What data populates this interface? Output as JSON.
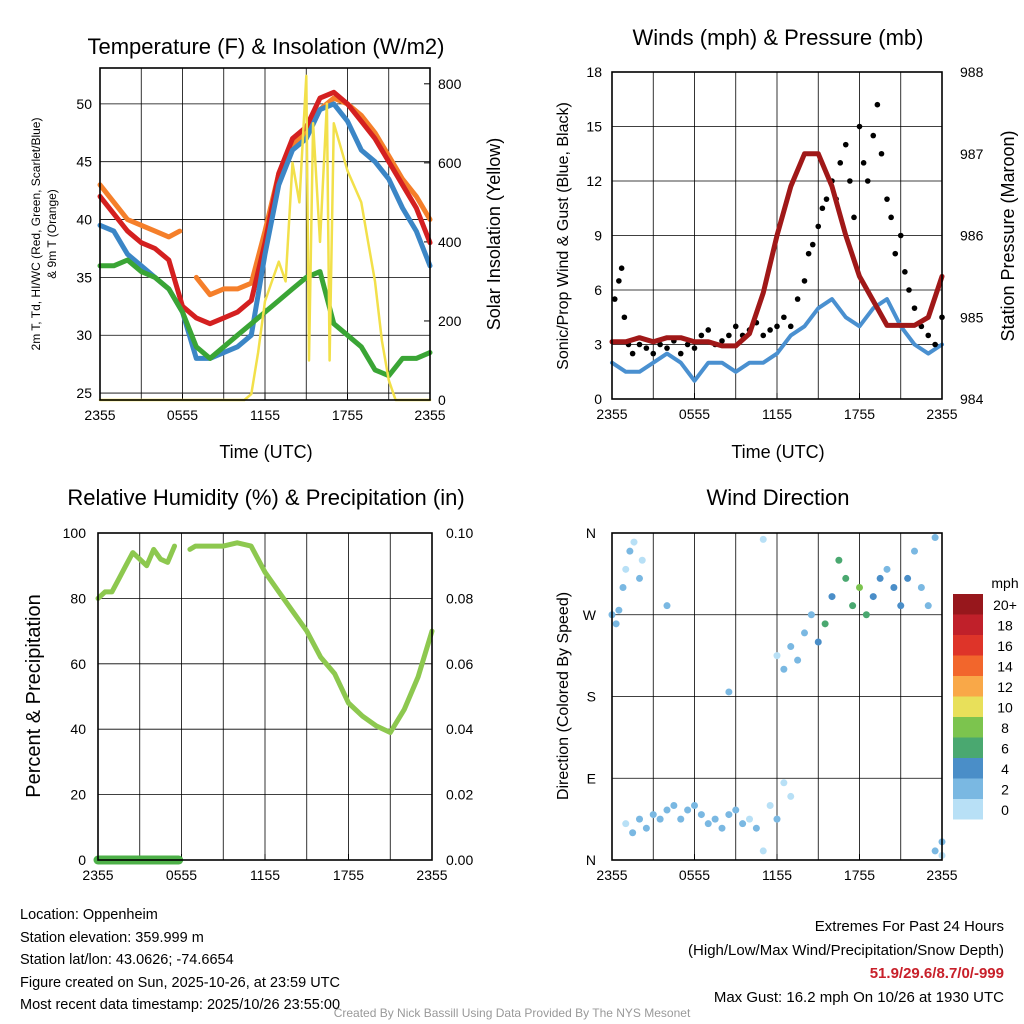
{
  "chart_data": [
    {
      "type": "line",
      "title": "Temperature (F) & Insolation (W/m2)",
      "xlabel": "Time (UTC)",
      "ylabel": "2m T, Td, HI/WC (Red, Green, Scarlet/Blue) & 9m T (Orange)",
      "y2label": "Solar Insolation (Yellow)",
      "xticks": [
        "2355",
        "0555",
        "1155",
        "1755",
        "2355"
      ],
      "yticks": [
        "25",
        "30",
        "35",
        "40",
        "45",
        "50"
      ],
      "y2ticks": [
        "0",
        "200",
        "400",
        "600",
        "800"
      ],
      "ylim": [
        24.4,
        53.1
      ],
      "y2lim": [
        0,
        840
      ],
      "xlim_hours": [
        0,
        24
      ],
      "series": [
        {
          "name": "9m T",
          "color": "#f57f2a",
          "axis": "left",
          "x": [
            0,
            1,
            2,
            3,
            4,
            5,
            5.8,
            6.8,
            7,
            8,
            9,
            10,
            11,
            12,
            13,
            14,
            15,
            16,
            17,
            18,
            19,
            20,
            21,
            22,
            23,
            24
          ],
          "values": [
            43,
            41.5,
            40,
            39.5,
            39,
            38.5,
            39,
            null,
            35,
            33.5,
            34,
            34,
            34.5,
            39,
            44,
            46.5,
            47.5,
            49.5,
            50.5,
            50,
            49,
            47.5,
            45.5,
            43.5,
            42,
            40
          ]
        },
        {
          "name": "2m T",
          "color": "#d42020",
          "axis": "left",
          "x": [
            0,
            1,
            2,
            3,
            4,
            5,
            6,
            7,
            8,
            9,
            10,
            11,
            12,
            13,
            14,
            15,
            16,
            17,
            18,
            19,
            20,
            21,
            22,
            23,
            24
          ],
          "values": [
            42,
            40.5,
            39,
            38,
            37.5,
            36.5,
            32.5,
            31.5,
            31,
            31.5,
            32,
            33,
            38,
            44,
            47,
            48,
            50.5,
            51,
            50,
            48.5,
            47,
            45,
            43,
            41,
            38
          ]
        },
        {
          "name": "HI/WC",
          "color": "#3b86c6",
          "axis": "left",
          "x": [
            0,
            1,
            2,
            3,
            4,
            5,
            6,
            7,
            8,
            9,
            10,
            11,
            12,
            13,
            14,
            15,
            16,
            17,
            18,
            19,
            20,
            21,
            22,
            23,
            24
          ],
          "values": [
            39.5,
            39,
            37,
            36,
            35,
            34,
            32,
            28,
            28,
            28.5,
            29,
            30,
            37,
            43,
            46,
            47,
            49.5,
            50,
            48.5,
            46,
            45,
            43.5,
            41,
            39,
            36
          ]
        },
        {
          "name": "Td",
          "color": "#3aa535",
          "axis": "left",
          "x": [
            0,
            1,
            2,
            3,
            4,
            5,
            6,
            7,
            8,
            9,
            10,
            11,
            12,
            13,
            14,
            15,
            16,
            17,
            18,
            19,
            20,
            21,
            22,
            23,
            24
          ],
          "values": [
            36,
            36,
            36.5,
            35.5,
            35,
            34,
            32,
            29,
            28,
            29,
            30,
            31,
            32,
            33,
            34,
            35,
            35.5,
            31,
            30,
            29,
            27,
            26.5,
            28,
            28,
            28.5
          ]
        },
        {
          "name": "Solar",
          "color": "#f2e04a",
          "axis": "right",
          "x": [
            0,
            10.5,
            11,
            11.5,
            12,
            12.5,
            13,
            13.5,
            14,
            14.5,
            15,
            15.2,
            15.5,
            16,
            16.5,
            16.7,
            17,
            18,
            19,
            19.5,
            20,
            20.5,
            21,
            21.5,
            24
          ],
          "values": [
            0,
            0,
            15,
            120,
            250,
            300,
            350,
            300,
            600,
            500,
            820,
            100,
            700,
            400,
            750,
            100,
            700,
            580,
            500,
            400,
            300,
            150,
            50,
            0,
            0
          ]
        }
      ]
    },
    {
      "type": "line",
      "title": "Winds (mph) & Pressure (mb)",
      "xlabel": "Time (UTC)",
      "ylabel": "Sonic/Prop Wind & Gust (Blue, Black)",
      "y2label": "Station Pressure (Maroon)",
      "xticks": [
        "2355",
        "0555",
        "1155",
        "1755",
        "2355"
      ],
      "yticks": [
        "0",
        "3",
        "6",
        "9",
        "12",
        "15",
        "18"
      ],
      "y2ticks": [
        "984",
        "985",
        "986",
        "987",
        "988"
      ],
      "ylim": [
        0,
        18
      ],
      "y2lim": [
        984,
        988
      ],
      "wind": {
        "color": "#4a90d0",
        "x": [
          0,
          1,
          2,
          3,
          4,
          5,
          6,
          7,
          8,
          9,
          10,
          11,
          12,
          13,
          14,
          15,
          16,
          17,
          18,
          19,
          20,
          21,
          22,
          23,
          24
        ],
        "values": [
          2,
          1.5,
          1.5,
          2,
          2.5,
          2,
          1,
          2,
          2,
          1.5,
          2,
          2,
          2.5,
          3.5,
          4,
          5,
          5.5,
          4.5,
          4,
          5,
          5.5,
          4,
          3,
          2.5,
          3
        ]
      },
      "gust": {
        "color": "#000000",
        "points": [
          [
            0.2,
            5.5
          ],
          [
            0.5,
            6.5
          ],
          [
            0.7,
            7.2
          ],
          [
            0.9,
            4.5
          ],
          [
            1.2,
            3
          ],
          [
            1.5,
            2.5
          ],
          [
            2,
            3
          ],
          [
            2.5,
            2.8
          ],
          [
            3,
            2.5
          ],
          [
            3.5,
            3
          ],
          [
            4,
            2.8
          ],
          [
            4.5,
            3.2
          ],
          [
            5,
            2.5
          ],
          [
            5.5,
            3
          ],
          [
            6,
            2.8
          ],
          [
            6.5,
            3.5
          ],
          [
            7,
            3.8
          ],
          [
            7.5,
            3
          ],
          [
            8,
            3.2
          ],
          [
            8.5,
            3.5
          ],
          [
            9,
            4
          ],
          [
            9.5,
            3.5
          ],
          [
            10,
            3.8
          ],
          [
            10.5,
            4.2
          ],
          [
            11,
            3.5
          ],
          [
            11.5,
            3.8
          ],
          [
            12,
            4
          ],
          [
            12.5,
            4.5
          ],
          [
            13,
            4
          ],
          [
            13.5,
            5.5
          ],
          [
            14,
            6.5
          ],
          [
            14.3,
            8
          ],
          [
            14.6,
            8.5
          ],
          [
            15,
            9.5
          ],
          [
            15.3,
            10.5
          ],
          [
            15.6,
            11
          ],
          [
            16,
            12
          ],
          [
            16.3,
            11
          ],
          [
            16.6,
            13
          ],
          [
            17,
            14
          ],
          [
            17.3,
            12
          ],
          [
            17.6,
            10
          ],
          [
            18,
            15
          ],
          [
            18.3,
            13
          ],
          [
            18.6,
            12
          ],
          [
            19,
            14.5
          ],
          [
            19.3,
            16.2
          ],
          [
            19.6,
            13.5
          ],
          [
            20,
            11
          ],
          [
            20.3,
            10
          ],
          [
            20.6,
            8
          ],
          [
            21,
            9
          ],
          [
            21.3,
            7
          ],
          [
            21.6,
            6
          ],
          [
            22,
            5
          ],
          [
            22.5,
            4
          ],
          [
            23,
            3.5
          ],
          [
            23.5,
            3
          ],
          [
            24,
            4.5
          ]
        ]
      },
      "pressure": {
        "color": "#a01818",
        "x": [
          0,
          1,
          2,
          3,
          4,
          5,
          6,
          7,
          8,
          9,
          10,
          11,
          12,
          13,
          14,
          15,
          16,
          17,
          18,
          19,
          20,
          21,
          22,
          23,
          24
        ],
        "values": [
          984.7,
          984.7,
          984.75,
          984.7,
          984.75,
          984.75,
          984.7,
          984.7,
          984.65,
          984.65,
          984.8,
          985.3,
          986,
          986.6,
          987,
          987,
          986.6,
          986,
          985.5,
          985.2,
          984.9,
          984.9,
          984.9,
          985,
          985.5
        ]
      }
    },
    {
      "type": "line",
      "title": "Relative Humidity (%) & Precipitation (in)",
      "xlabel": "",
      "ylabel": "Percent & Precipitation",
      "xticks": [
        "2355",
        "0555",
        "1155",
        "1755",
        "2355"
      ],
      "yticks": [
        "0",
        "20",
        "40",
        "60",
        "80",
        "100"
      ],
      "y2ticks": [
        "0.00",
        "0.02",
        "0.04",
        "0.06",
        "0.08",
        "0.10"
      ],
      "ylim": [
        0,
        100
      ],
      "y2lim": [
        0,
        0.1
      ],
      "rh": {
        "color": "#8dc84f",
        "x": [
          0,
          0.5,
          1,
          1.5,
          2,
          2.5,
          3,
          3.5,
          4,
          4.5,
          5,
          5.5,
          5.8,
          6.6,
          7,
          8,
          9,
          10,
          11,
          12,
          13,
          14,
          15,
          16,
          17,
          18,
          19,
          20,
          21,
          22,
          23,
          24
        ],
        "values": [
          80,
          82,
          82,
          86,
          90,
          94,
          92,
          90,
          95,
          92,
          91,
          96,
          null,
          95,
          96,
          96,
          96,
          97,
          96,
          88,
          82,
          76,
          70,
          62,
          57,
          48,
          44,
          41,
          39,
          46,
          56,
          70
        ]
      },
      "precip": {
        "color": "#4db048",
        "x": [
          0,
          5.8,
          6.6,
          24
        ],
        "values": [
          0,
          0,
          null,
          0
        ]
      }
    },
    {
      "type": "scatter",
      "title": "Wind Direction",
      "ylabel": "Direction (Colored By Speed)",
      "xticks": [
        "2355",
        "0555",
        "1155",
        "1755",
        "2355"
      ],
      "yticks": [
        "N",
        "E",
        "S",
        "W",
        "N"
      ],
      "ylim": [
        0,
        360
      ],
      "legend": {
        "title": "mph",
        "labels": [
          "20+",
          "18",
          "16",
          "14",
          "12",
          "10",
          "8",
          "6",
          "4",
          "2",
          "0"
        ],
        "colors": [
          "#97171c",
          "#c0202a",
          "#de3429",
          "#f2662c",
          "#f9a848",
          "#e8e05a",
          "#7cc44e",
          "#4aa870",
          "#4a8ec8",
          "#7ab8e2",
          "#b8e0f6"
        ]
      },
      "points": [
        [
          0,
          270,
          3
        ],
        [
          0.3,
          260,
          2
        ],
        [
          0.5,
          275,
          2
        ],
        [
          0.8,
          300,
          2
        ],
        [
          1,
          320,
          1
        ],
        [
          1.3,
          340,
          2
        ],
        [
          1.6,
          350,
          1
        ],
        [
          2,
          310,
          2
        ],
        [
          2.2,
          330,
          1
        ],
        [
          1,
          40,
          1
        ],
        [
          1.5,
          30,
          2
        ],
        [
          2,
          45,
          2
        ],
        [
          2.5,
          35,
          2
        ],
        [
          3,
          50,
          3
        ],
        [
          3.5,
          45,
          2
        ],
        [
          4,
          55,
          3
        ],
        [
          4.5,
          60,
          2
        ],
        [
          5,
          45,
          3
        ],
        [
          5.5,
          55,
          2
        ],
        [
          6,
          60,
          3
        ],
        [
          6.5,
          50,
          2
        ],
        [
          7,
          40,
          2
        ],
        [
          7.5,
          45,
          3
        ],
        [
          8,
          35,
          2
        ],
        [
          8.5,
          50,
          3
        ],
        [
          9,
          55,
          2
        ],
        [
          9.5,
          40,
          2
        ],
        [
          10,
          45,
          1
        ],
        [
          10.5,
          35,
          2
        ],
        [
          11,
          10,
          1
        ],
        [
          11.5,
          60,
          1
        ],
        [
          12,
          45,
          2
        ],
        [
          12.5,
          85,
          1
        ],
        [
          13,
          70,
          1
        ],
        [
          8.5,
          185,
          2
        ],
        [
          4,
          280,
          2
        ],
        [
          11,
          353,
          1
        ],
        [
          12,
          225,
          1
        ],
        [
          12.5,
          210,
          2
        ],
        [
          13,
          235,
          2
        ],
        [
          13.5,
          220,
          3
        ],
        [
          14,
          250,
          2
        ],
        [
          14.5,
          270,
          3
        ],
        [
          15,
          240,
          4
        ],
        [
          15.5,
          260,
          6
        ],
        [
          16,
          290,
          4
        ],
        [
          16.5,
          330,
          7
        ],
        [
          17,
          310,
          6
        ],
        [
          17.5,
          280,
          6
        ],
        [
          18,
          300,
          8
        ],
        [
          18.5,
          270,
          6
        ],
        [
          19,
          290,
          4
        ],
        [
          19.5,
          310,
          5
        ],
        [
          20,
          320,
          3
        ],
        [
          20.5,
          300,
          4
        ],
        [
          21,
          280,
          5
        ],
        [
          21.5,
          310,
          4
        ],
        [
          22,
          340,
          3
        ],
        [
          22.5,
          300,
          3
        ],
        [
          23,
          280,
          2
        ],
        [
          23.5,
          355,
          2
        ],
        [
          23.5,
          10,
          2
        ],
        [
          24,
          20,
          2
        ],
        [
          24,
          5,
          1
        ]
      ]
    }
  ],
  "info": {
    "location": "Location: Oppenheim",
    "elevation": "Station elevation: 359.999 m",
    "latlon": "Station lat/lon: 43.0626; -74.6654",
    "created": "Figure created on Sun, 2025-10-26, at 23:59 UTC",
    "recent": "Most recent data timestamp: 2025/10/26 23:55:00"
  },
  "extremes": {
    "title": "Extremes For Past 24 Hours",
    "subtitle": "(High/Low/Max Wind/Precipitation/Snow Depth)",
    "values": "51.9/29.6/8.7/0/-999",
    "gust": "Max Gust: 16.2 mph On 10/26 at 1930 UTC"
  },
  "credit": "Created By Nick Bassill Using Data Provided By The NYS Mesonet"
}
